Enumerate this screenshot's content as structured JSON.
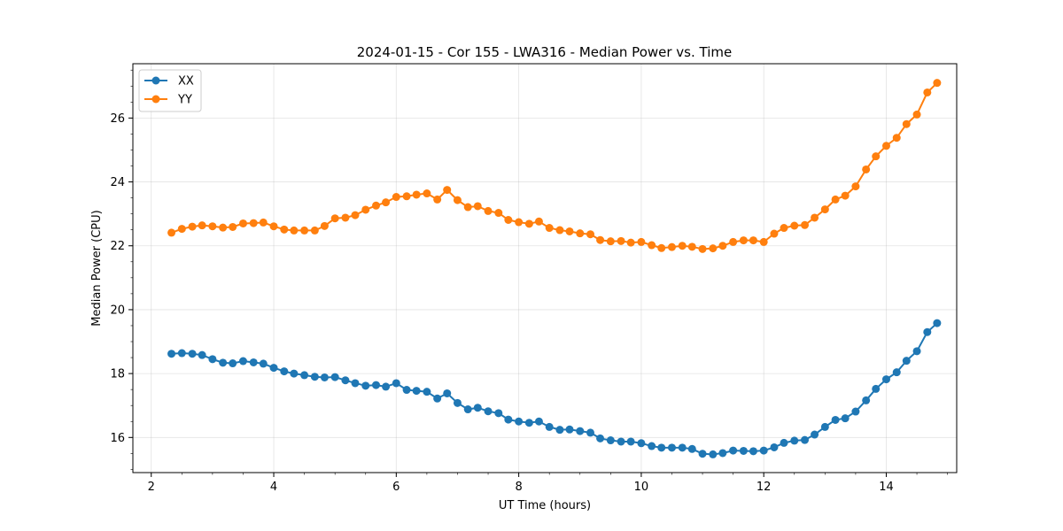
{
  "chart_data": {
    "type": "line",
    "title": "2024-01-15 - Cor 155 - LWA316 - Median Power vs. Time",
    "xlabel": "UT Time (hours)",
    "ylabel": "Median Power (CPU)",
    "xlim": [
      1.7,
      15.15
    ],
    "ylim": [
      14.9,
      27.7
    ],
    "xticks": [
      2,
      4,
      6,
      8,
      10,
      12,
      14
    ],
    "yticks": [
      16,
      18,
      20,
      22,
      24,
      26
    ],
    "grid": true,
    "legend_position": "top-left",
    "x": [
      2.33,
      2.5,
      2.67,
      2.83,
      3.0,
      3.17,
      3.33,
      3.5,
      3.67,
      3.83,
      4.0,
      4.17,
      4.33,
      4.5,
      4.67,
      4.83,
      5.0,
      5.17,
      5.33,
      5.5,
      5.67,
      5.83,
      6.0,
      6.17,
      6.33,
      6.5,
      6.67,
      6.83,
      7.0,
      7.17,
      7.33,
      7.5,
      7.67,
      7.83,
      8.0,
      8.17,
      8.33,
      8.5,
      8.67,
      8.83,
      9.0,
      9.17,
      9.33,
      9.5,
      9.67,
      9.83,
      10.0,
      10.17,
      10.33,
      10.5,
      10.67,
      10.83,
      11.0,
      11.17,
      11.33,
      11.5,
      11.67,
      11.83,
      12.0,
      12.17,
      12.33,
      12.5,
      12.67,
      12.83,
      13.0,
      13.17,
      13.33,
      13.5,
      13.67,
      13.83,
      14.0,
      14.17,
      14.33,
      14.5,
      14.67,
      14.83
    ],
    "series": [
      {
        "name": "XX",
        "color": "#1f77b4",
        "values": [
          18.62,
          18.64,
          18.62,
          18.58,
          18.45,
          18.34,
          18.32,
          18.39,
          18.35,
          18.31,
          18.18,
          18.07,
          18.0,
          17.95,
          17.9,
          17.88,
          17.89,
          17.79,
          17.7,
          17.62,
          17.64,
          17.59,
          17.7,
          17.49,
          17.46,
          17.43,
          17.22,
          17.38,
          17.08,
          16.88,
          16.93,
          16.82,
          16.76,
          16.56,
          16.5,
          16.46,
          16.5,
          16.33,
          16.24,
          16.25,
          16.2,
          16.15,
          15.97,
          15.91,
          15.87,
          15.87,
          15.82,
          15.73,
          15.68,
          15.68,
          15.68,
          15.64,
          15.49,
          15.47,
          15.51,
          15.59,
          15.58,
          15.57,
          15.59,
          15.69,
          15.83,
          15.9,
          15.92,
          16.09,
          16.33,
          16.55,
          16.6,
          16.81,
          17.16,
          17.52,
          17.82,
          18.04,
          18.4,
          18.7,
          19.3,
          19.58
        ]
      },
      {
        "name": "YY",
        "color": "#ff7f0e",
        "values": [
          22.41,
          22.53,
          22.6,
          22.64,
          22.61,
          22.57,
          22.59,
          22.7,
          22.71,
          22.73,
          22.61,
          22.51,
          22.48,
          22.48,
          22.48,
          22.62,
          22.86,
          22.88,
          22.96,
          23.13,
          23.26,
          23.36,
          23.53,
          23.55,
          23.6,
          23.64,
          23.45,
          23.75,
          23.43,
          23.21,
          23.24,
          23.09,
          23.03,
          22.81,
          22.74,
          22.69,
          22.76,
          22.56,
          22.49,
          22.45,
          22.39,
          22.36,
          22.18,
          22.14,
          22.15,
          22.1,
          22.12,
          22.02,
          21.93,
          21.96,
          22.0,
          21.97,
          21.9,
          21.92,
          22.0,
          22.12,
          22.17,
          22.17,
          22.12,
          22.38,
          22.56,
          22.63,
          22.65,
          22.88,
          23.14,
          23.45,
          23.57,
          23.86,
          24.39,
          24.8,
          25.13,
          25.38,
          25.81,
          26.11,
          26.8,
          27.1
        ]
      }
    ]
  }
}
